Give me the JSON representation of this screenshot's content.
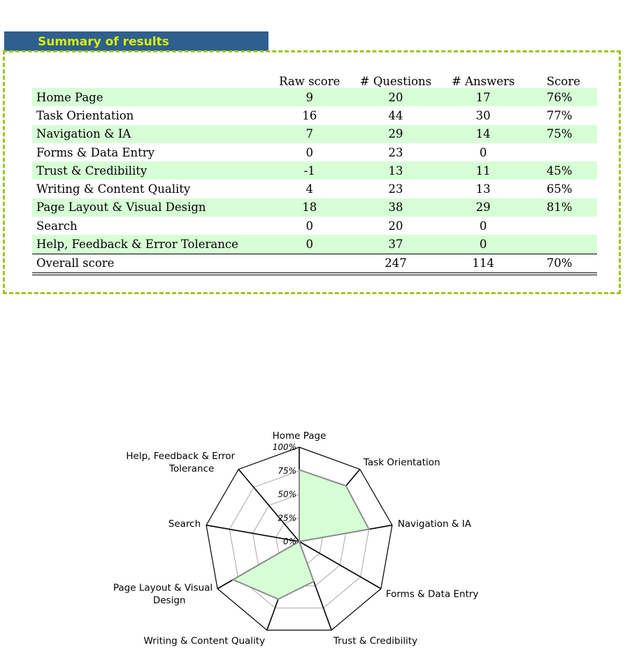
{
  "summary": {
    "title": "Summary of results",
    "headers": [
      "",
      "Raw score",
      "# Questions",
      "# Answers",
      "Score"
    ],
    "rows": [
      {
        "category": "Home Page",
        "raw": "9",
        "questions": "20",
        "answers": "17",
        "score": "76%"
      },
      {
        "category": "Task Orientation",
        "raw": "16",
        "questions": "44",
        "answers": "30",
        "score": "77%"
      },
      {
        "category": "Navigation & IA",
        "raw": "7",
        "questions": "29",
        "answers": "14",
        "score": "75%"
      },
      {
        "category": "Forms & Data Entry",
        "raw": "0",
        "questions": "23",
        "answers": "0",
        "score": ""
      },
      {
        "category": "Trust & Credibility",
        "raw": "-1",
        "questions": "13",
        "answers": "11",
        "score": "45%"
      },
      {
        "category": "Writing & Content Quality",
        "raw": "4",
        "questions": "23",
        "answers": "13",
        "score": "65%"
      },
      {
        "category": "Page Layout & Visual Design",
        "raw": "18",
        "questions": "38",
        "answers": "29",
        "score": "81%"
      },
      {
        "category": "Search",
        "raw": "0",
        "questions": "20",
        "answers": "0",
        "score": ""
      },
      {
        "category": "Help, Feedback & Error Tolerance",
        "raw": "0",
        "questions": "37",
        "answers": "0",
        "score": ""
      }
    ],
    "overall": {
      "label": "Overall score",
      "raw": "",
      "questions": "247",
      "answers": "114",
      "score": "70%"
    }
  },
  "colors": {
    "header_bar": "#2e5f8e",
    "header_text": "#d8f000",
    "dashed_border": "#9ec41e",
    "row_shade": "#d7ffd6",
    "radar_fill": "#d7ffd6"
  },
  "chart_data": {
    "type": "radar",
    "categories": [
      "Home Page",
      "Task Orientation",
      "Navigation & IA",
      "Forms & Data Entry",
      "Trust & Credibility",
      "Writing & Content Quality",
      "Page Layout & Visual Design",
      "Search",
      "Help, Feedback & Error Tolerance"
    ],
    "values": [
      76,
      77,
      75,
      0,
      45,
      65,
      81,
      0,
      0
    ],
    "value_unit": "%",
    "range": [
      0,
      100
    ],
    "tick_labels": [
      "0%",
      "25%",
      "50%",
      "75%",
      "100%"
    ],
    "legend": "none"
  }
}
